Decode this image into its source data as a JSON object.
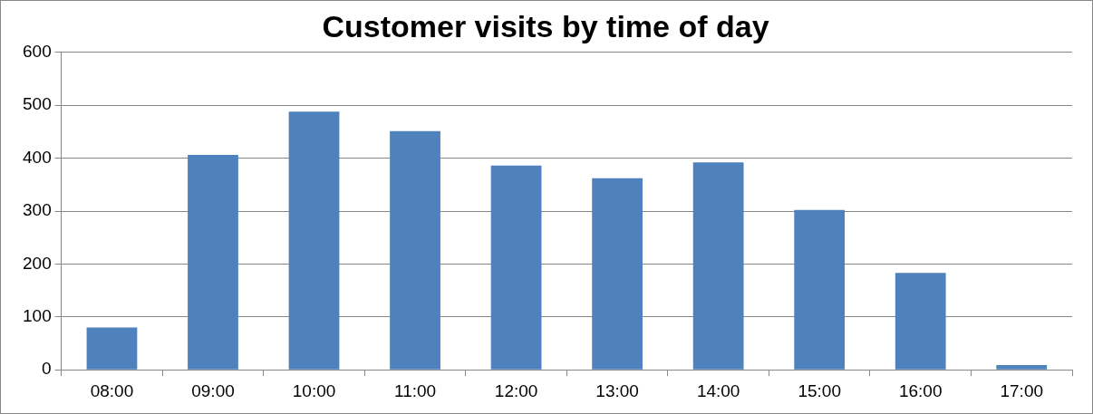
{
  "chart_data": {
    "type": "bar",
    "title": "Customer visits by time of day",
    "categories": [
      "08:00",
      "09:00",
      "10:00",
      "11:00",
      "12:00",
      "13:00",
      "14:00",
      "15:00",
      "16:00",
      "17:00"
    ],
    "values": [
      80,
      406,
      488,
      451,
      386,
      362,
      392,
      302,
      183,
      9
    ],
    "color": "#4f81bd",
    "ylim": [
      0,
      600
    ],
    "yticks": [
      0,
      100,
      200,
      300,
      400,
      500,
      600
    ],
    "grid": "y",
    "legend": false
  }
}
